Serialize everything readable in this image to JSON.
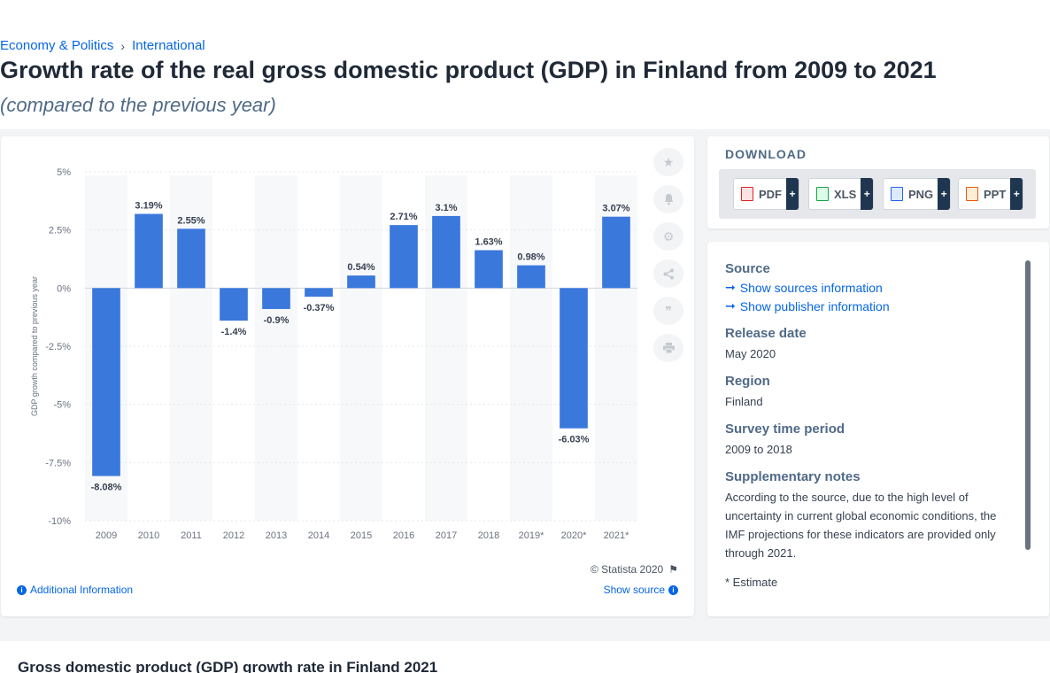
{
  "breadcrumb": {
    "items": [
      "Economy & Politics",
      "International"
    ],
    "separator": "›"
  },
  "page": {
    "title": "Growth rate of the real gross domestic product (GDP) in Finland from 2009 to 2021",
    "subtitle": "(compared to the previous year)"
  },
  "chart_footer": {
    "copyright": "© Statista 2020",
    "additional_info": "Additional Information",
    "show_source": "Show source"
  },
  "actions": [
    "star-icon",
    "bell-icon",
    "gear-icon",
    "share-icon",
    "quote-icon",
    "print-icon"
  ],
  "download": {
    "title": "DOWNLOAD",
    "buttons": [
      {
        "label": "PDF",
        "icon": "pdf-file-icon",
        "color": "#dc2626"
      },
      {
        "label": "XLS",
        "icon": "xls-file-icon",
        "color": "#16a34a"
      },
      {
        "label": "PNG",
        "icon": "png-file-icon",
        "color": "#2563eb"
      },
      {
        "label": "PPT",
        "icon": "ppt-file-icon",
        "color": "#ea580c"
      }
    ],
    "plus": "+"
  },
  "info": {
    "source_label": "Source",
    "show_sources": "Show sources information",
    "show_publisher": "Show publisher information",
    "release_label": "Release date",
    "release_value": "May 2020",
    "region_label": "Region",
    "region_value": "Finland",
    "period_label": "Survey time period",
    "period_value": "2009 to 2018",
    "notes_label": "Supplementary notes",
    "notes_value": "According to the source, due to the high level of uncertainty in current global economic conditions, the IMF projections for these indicators are provided only through 2021.",
    "estimate_note": "* Estimate"
  },
  "next_section": {
    "title": "Gross domestic product (GDP) growth rate in Finland 2021"
  },
  "colors": {
    "bar": "#3a78dc",
    "accent": "#0666e5"
  },
  "chart_data": {
    "type": "bar",
    "categories": [
      "2009",
      "2010",
      "2011",
      "2012",
      "2013",
      "2014",
      "2015",
      "2016",
      "2017",
      "2018",
      "2019*",
      "2020*",
      "2021*"
    ],
    "values": [
      -8.08,
      3.19,
      2.55,
      -1.4,
      -0.9,
      -0.37,
      0.54,
      2.71,
      3.1,
      1.63,
      0.98,
      -6.03,
      3.07
    ],
    "data_labels": [
      "-8.08%",
      "3.19%",
      "2.55%",
      "-1.4%",
      "-0.9%",
      "-0.37%",
      "0.54%",
      "2.71%",
      "3.1%",
      "1.63%",
      "0.98%",
      "-6.03%",
      "3.07%"
    ],
    "ylabel": "GDP growth compared to previous year",
    "xlabel": "",
    "ylim": [
      -10,
      5
    ],
    "yticks": [
      5,
      2.5,
      0,
      -2.5,
      -5,
      -7.5,
      -10
    ],
    "ytick_labels": [
      "5%",
      "2.5%",
      "0%",
      "-2.5%",
      "-5%",
      "-7.5%",
      "-10%"
    ],
    "grid": true
  }
}
